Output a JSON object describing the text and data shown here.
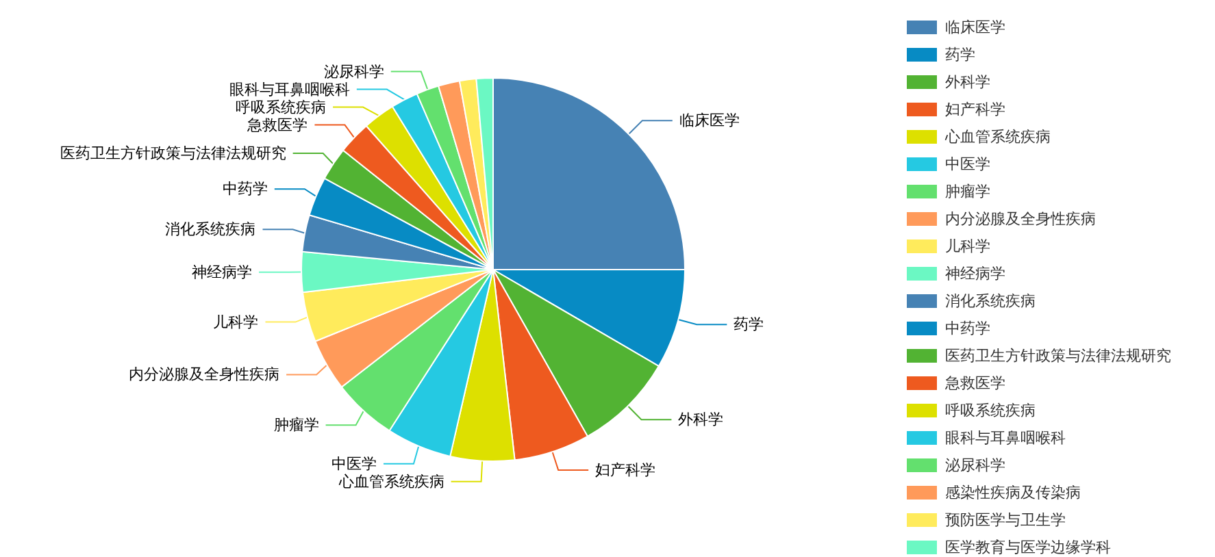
{
  "chart_data": {
    "type": "pie",
    "categories": [
      "临床医学",
      "药学",
      "外科学",
      "妇产科学",
      "心血管系统疾病",
      "中医学",
      "肿瘤学",
      "内分泌腺及全身性疾病",
      "儿科学",
      "神经病学",
      "消化系统疾病",
      "中药学",
      "医药卫生方针政策与法律法规研究",
      "急救医学",
      "呼吸系统疾病",
      "眼科与耳鼻咽喉科",
      "泌尿科学",
      "感染性疾病及传染病",
      "预防医学与卫生学",
      "医学教育与医学边缘学科"
    ],
    "values": [
      25.0,
      8.4,
      8.4,
      6.4,
      5.4,
      5.5,
      5.4,
      4.4,
      4.2,
      3.4,
      3.1,
      3.3,
      2.8,
      2.8,
      2.7,
      2.3,
      1.9,
      1.8,
      1.4,
      1.4
    ],
    "colors": [
      "#4682b4",
      "#078bc4",
      "#52b333",
      "#ee5a1f",
      "#dde000",
      "#25c9e2",
      "#63e06e",
      "#ff9a5a",
      "#ffeb5c",
      "#6bf8c3",
      "#4682b4",
      "#078bc4",
      "#52b333",
      "#ee5a1f",
      "#dde000",
      "#25c9e2",
      "#63e06e",
      "#ff9a5a",
      "#ffeb5c",
      "#6bf8c3"
    ],
    "legend": "right"
  }
}
